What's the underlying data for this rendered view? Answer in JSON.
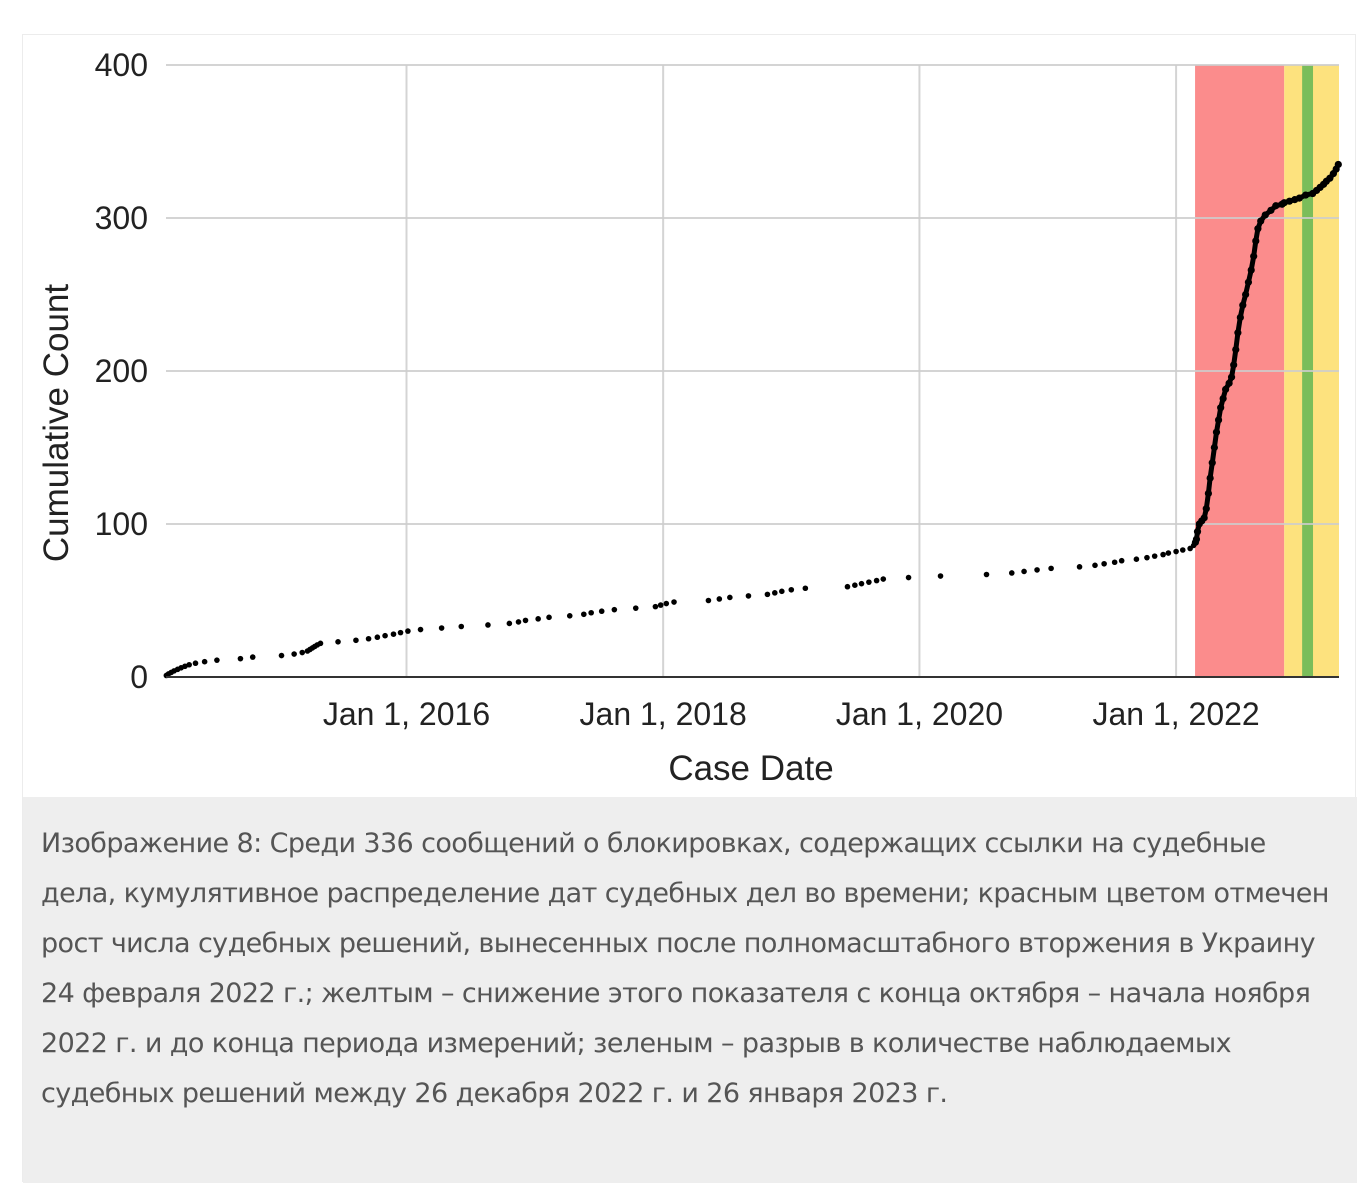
{
  "chart_data": {
    "type": "scatter",
    "title": "",
    "xlabel": "Case Date",
    "ylabel": "Cumulative Count",
    "xlim": [
      "2014-02-15",
      "2023-04-10"
    ],
    "ylim": [
      0,
      400
    ],
    "y_ticks": [
      {
        "value": 0,
        "label": "0"
      },
      {
        "value": 100,
        "label": "100"
      },
      {
        "value": 200,
        "label": "200"
      },
      {
        "value": 300,
        "label": "300"
      },
      {
        "value": 400,
        "label": "400"
      }
    ],
    "x_ticks": [
      {
        "value": "2016-01-01",
        "label": "Jan 1, 2016"
      },
      {
        "value": "2018-01-01",
        "label": "Jan 1, 2018"
      },
      {
        "value": "2020-01-01",
        "label": "Jan 1, 2020"
      },
      {
        "value": "2022-01-01",
        "label": "Jan 1, 2022"
      }
    ],
    "grid": true,
    "regions": [
      {
        "name": "red",
        "start": "2022-02-24",
        "end": "2022-11-05",
        "color": "#fb8c8c"
      },
      {
        "name": "yellow",
        "start": "2022-11-05",
        "end": "2023-04-10",
        "color": "#fde27e"
      },
      {
        "name": "green",
        "start": "2022-12-26",
        "end": "2023-01-26",
        "color": "#7abd5a"
      }
    ],
    "point_color": "#000000",
    "points": [
      [
        "2014-02-16",
        1
      ],
      [
        "2014-02-22",
        2
      ],
      [
        "2014-03-02",
        3
      ],
      [
        "2014-03-10",
        4
      ],
      [
        "2014-03-20",
        5
      ],
      [
        "2014-03-30",
        6
      ],
      [
        "2014-04-10",
        7
      ],
      [
        "2014-04-22",
        8
      ],
      [
        "2014-05-10",
        9
      ],
      [
        "2014-06-05",
        10
      ],
      [
        "2014-07-10",
        11
      ],
      [
        "2014-09-15",
        12
      ],
      [
        "2014-10-20",
        13
      ],
      [
        "2015-01-10",
        14
      ],
      [
        "2015-02-15",
        15
      ],
      [
        "2015-03-10",
        16
      ],
      [
        "2015-03-25",
        17
      ],
      [
        "2015-04-01",
        18
      ],
      [
        "2015-04-08",
        19
      ],
      [
        "2015-04-15",
        20
      ],
      [
        "2015-04-22",
        21
      ],
      [
        "2015-05-01",
        22
      ],
      [
        "2015-06-20",
        23
      ],
      [
        "2015-08-10",
        24
      ],
      [
        "2015-09-15",
        25
      ],
      [
        "2015-10-10",
        26
      ],
      [
        "2015-11-01",
        27
      ],
      [
        "2015-11-25",
        28
      ],
      [
        "2015-12-15",
        29
      ],
      [
        "2016-01-05",
        30
      ],
      [
        "2016-02-10",
        31
      ],
      [
        "2016-04-10",
        32
      ],
      [
        "2016-06-05",
        33
      ],
      [
        "2016-08-20",
        34
      ],
      [
        "2016-10-20",
        35
      ],
      [
        "2016-11-15",
        36
      ],
      [
        "2016-12-05",
        37
      ],
      [
        "2017-01-10",
        38
      ],
      [
        "2017-02-10",
        39
      ],
      [
        "2017-04-10",
        40
      ],
      [
        "2017-05-20",
        41
      ],
      [
        "2017-06-10",
        42
      ],
      [
        "2017-07-10",
        43
      ],
      [
        "2017-08-15",
        44
      ],
      [
        "2017-10-15",
        45
      ],
      [
        "2017-12-10",
        46
      ],
      [
        "2017-12-25",
        47
      ],
      [
        "2018-01-10",
        48
      ],
      [
        "2018-02-01",
        49
      ],
      [
        "2018-05-10",
        50
      ],
      [
        "2018-06-10",
        51
      ],
      [
        "2018-07-10",
        52
      ],
      [
        "2018-09-01",
        53
      ],
      [
        "2018-10-25",
        54
      ],
      [
        "2018-11-15",
        55
      ],
      [
        "2018-12-05",
        56
      ],
      [
        "2019-01-01",
        57
      ],
      [
        "2019-02-10",
        58
      ],
      [
        "2019-06-10",
        59
      ],
      [
        "2019-07-01",
        60
      ],
      [
        "2019-07-20",
        61
      ],
      [
        "2019-08-10",
        62
      ],
      [
        "2019-09-01",
        63
      ],
      [
        "2019-09-20",
        64
      ],
      [
        "2019-12-01",
        65
      ],
      [
        "2020-03-01",
        66
      ],
      [
        "2020-07-10",
        67
      ],
      [
        "2020-09-20",
        68
      ],
      [
        "2020-10-25",
        69
      ],
      [
        "2020-12-01",
        70
      ],
      [
        "2021-01-10",
        71
      ],
      [
        "2021-04-01",
        72
      ],
      [
        "2021-05-15",
        73
      ],
      [
        "2021-06-10",
        74
      ],
      [
        "2021-07-10",
        75
      ],
      [
        "2021-07-30",
        76
      ],
      [
        "2021-09-10",
        77
      ],
      [
        "2021-10-10",
        78
      ],
      [
        "2021-11-01",
        79
      ],
      [
        "2021-11-25",
        80
      ],
      [
        "2021-12-10",
        81
      ],
      [
        "2022-01-01",
        82
      ],
      [
        "2022-01-20",
        83
      ],
      [
        "2022-02-10",
        84
      ],
      [
        "2022-02-20",
        86
      ],
      [
        "2022-02-25",
        88
      ],
      [
        "2022-02-28",
        90
      ],
      [
        "2022-03-03",
        95
      ],
      [
        "2022-03-08",
        100
      ],
      [
        "2022-03-15",
        102
      ],
      [
        "2022-03-22",
        104
      ],
      [
        "2022-03-28",
        110
      ],
      [
        "2022-04-03",
        120
      ],
      [
        "2022-04-08",
        130
      ],
      [
        "2022-04-14",
        140
      ],
      [
        "2022-04-20",
        150
      ],
      [
        "2022-04-26",
        160
      ],
      [
        "2022-05-02",
        168
      ],
      [
        "2022-05-08",
        176
      ],
      [
        "2022-05-15",
        182
      ],
      [
        "2022-05-22",
        188
      ],
      [
        "2022-06-01",
        192
      ],
      [
        "2022-06-08",
        196
      ],
      [
        "2022-06-14",
        204
      ],
      [
        "2022-06-20",
        214
      ],
      [
        "2022-06-26",
        225
      ],
      [
        "2022-07-03",
        235
      ],
      [
        "2022-07-10",
        243
      ],
      [
        "2022-07-18",
        250
      ],
      [
        "2022-07-26",
        258
      ],
      [
        "2022-08-03",
        266
      ],
      [
        "2022-08-10",
        275
      ],
      [
        "2022-08-16",
        285
      ],
      [
        "2022-08-22",
        293
      ],
      [
        "2022-08-30",
        298
      ],
      [
        "2022-09-12",
        302
      ],
      [
        "2022-09-28",
        305
      ],
      [
        "2022-10-12",
        308
      ],
      [
        "2022-10-30",
        309
      ],
      [
        "2022-11-05",
        310
      ],
      [
        "2022-11-20",
        311
      ],
      [
        "2022-12-05",
        312
      ],
      [
        "2022-12-18",
        313
      ],
      [
        "2023-01-05",
        315
      ],
      [
        "2023-01-25",
        316
      ],
      [
        "2023-02-05",
        318
      ],
      [
        "2023-02-15",
        320
      ],
      [
        "2023-02-25",
        322
      ],
      [
        "2023-03-05",
        324
      ],
      [
        "2023-03-15",
        326
      ],
      [
        "2023-03-25",
        329
      ],
      [
        "2023-04-02",
        332
      ],
      [
        "2023-04-08",
        335
      ]
    ]
  },
  "caption": "Изображение 8: Среди 336 сообщений о блокировках, содержащих ссылки на судебные дела, кумулятивное распределение дат судебных дел во времени; красным цветом отмечен рост числа судебных решений, вынесенных после полномасштабного вторжения в Украину 24 февраля 2022 г.; желтым – снижение этого показателя с конца октября – начала ноября 2022 г. и до конца периода измерений; зеленым – разрыв в количестве наблюдаемых судебных решений между 26 декабря 2022 г. и 26 января 2023 г."
}
